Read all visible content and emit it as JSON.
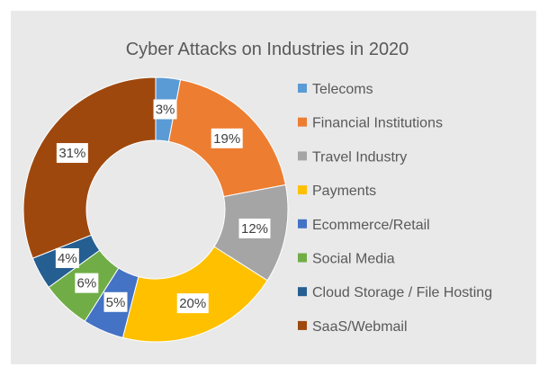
{
  "chart_data": {
    "type": "pie",
    "title": "Cyber Attacks on Industries in 2020",
    "categories": [
      "Telecoms",
      "Financial Institutions",
      "Travel Industry",
      "Payments",
      "Ecommerce/Retail",
      "Social Media",
      "Cloud Storage / File Hosting",
      "SaaS/Webmail"
    ],
    "values": [
      3,
      19,
      12,
      20,
      5,
      6,
      4,
      31
    ],
    "labels": [
      "3%",
      "19%",
      "12%",
      "20%",
      "5%",
      "6%",
      "4%",
      "31%"
    ],
    "colors": [
      "#5b9bd5",
      "#ed7d31",
      "#a5a5a5",
      "#ffc000",
      "#4472c4",
      "#70ad47",
      "#255e91",
      "#9e480e"
    ],
    "legend_position": "right",
    "donut": true
  }
}
